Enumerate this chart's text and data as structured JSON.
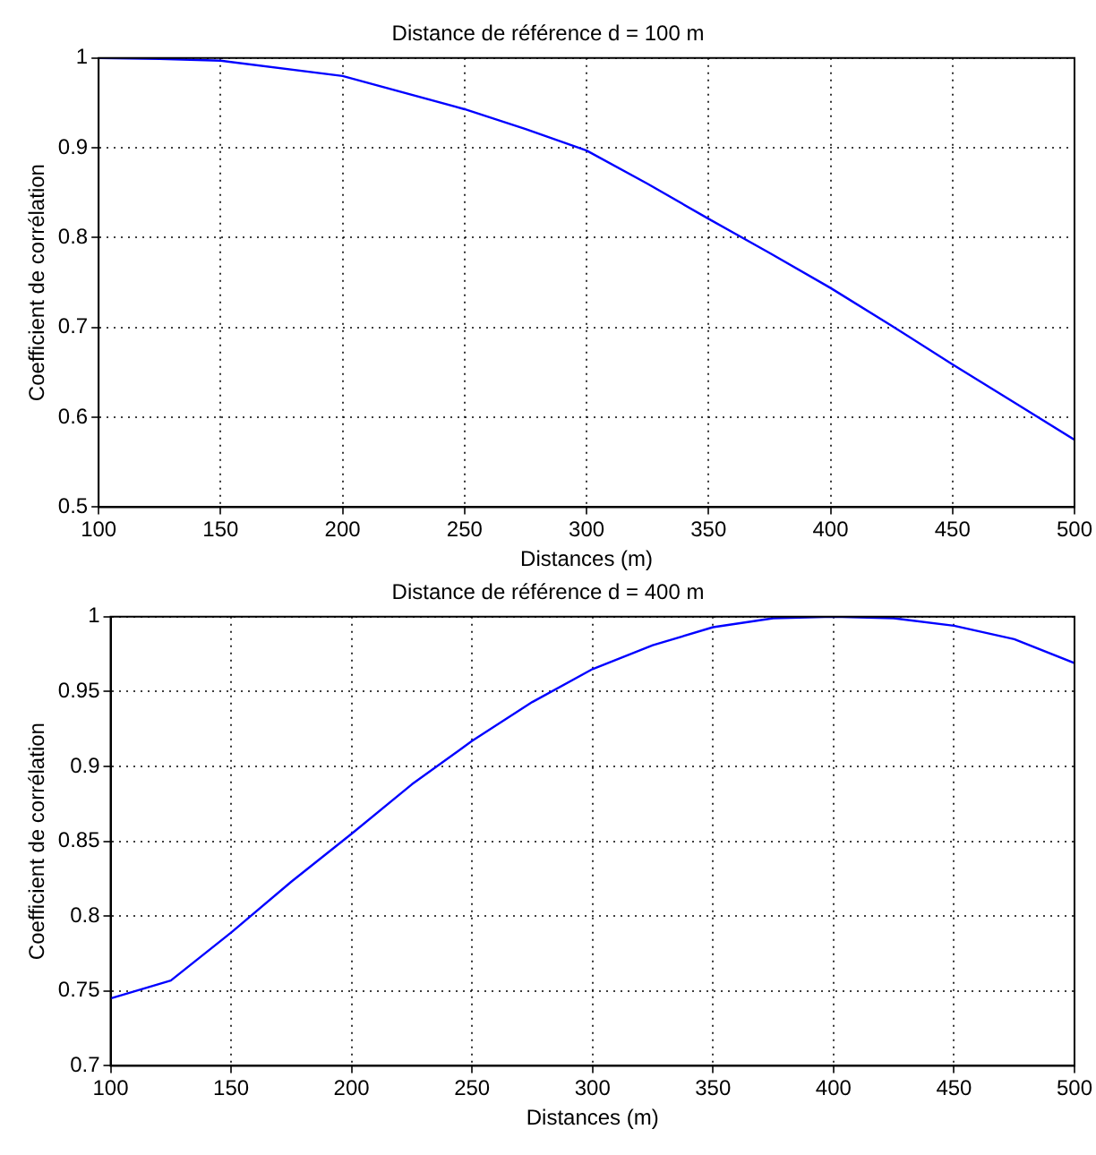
{
  "chart_data": [
    {
      "type": "line",
      "title": "Distance de référence d = 100 m",
      "xlabel": "Distances (m)",
      "ylabel": "Coefficient de corrélation",
      "x": [
        100,
        125,
        150,
        200,
        250,
        275,
        300,
        325,
        350,
        375,
        400,
        425,
        450,
        475,
        500
      ],
      "series": [
        {
          "color": "#0000ff",
          "values": [
            1,
            0.999,
            0.997,
            0.98,
            0.943,
            0.921,
            0.897,
            0.86,
            0.821,
            0.783,
            0.744,
            0.702,
            0.659,
            0.617,
            0.575
          ]
        }
      ],
      "xlim": [
        100,
        500
      ],
      "xticks": [
        100,
        150,
        200,
        250,
        300,
        350,
        400,
        450,
        500
      ],
      "ylim": [
        0.5,
        1
      ],
      "yticks": [
        0.5,
        0.6,
        0.7,
        0.8,
        0.9,
        1
      ],
      "grid": true,
      "line_style": "solid",
      "marker": "none"
    },
    {
      "type": "line",
      "title": "Distance de référence d = 400 m",
      "xlabel": "Distances (m)",
      "ylabel": "Coefficient de corrélation",
      "x": [
        100,
        125,
        150,
        175,
        200,
        225,
        250,
        275,
        300,
        325,
        350,
        375,
        400,
        425,
        450,
        475,
        500
      ],
      "series": [
        {
          "color": "#0000ff",
          "values": [
            0.745,
            0.757,
            0.789,
            0.823,
            0.855,
            0.888,
            0.917,
            0.943,
            0.965,
            0.981,
            0.993,
            0.999,
            1,
            0.999,
            0.994,
            0.985,
            0.969
          ]
        }
      ],
      "xlim": [
        100,
        500
      ],
      "xticks": [
        100,
        150,
        200,
        250,
        300,
        350,
        400,
        450,
        500
      ],
      "ylim": [
        0.7,
        1
      ],
      "yticks": [
        0.7,
        0.75,
        0.8,
        0.85,
        0.9,
        0.95,
        1
      ],
      "grid": true,
      "line_style": "solid",
      "marker": "none"
    }
  ]
}
